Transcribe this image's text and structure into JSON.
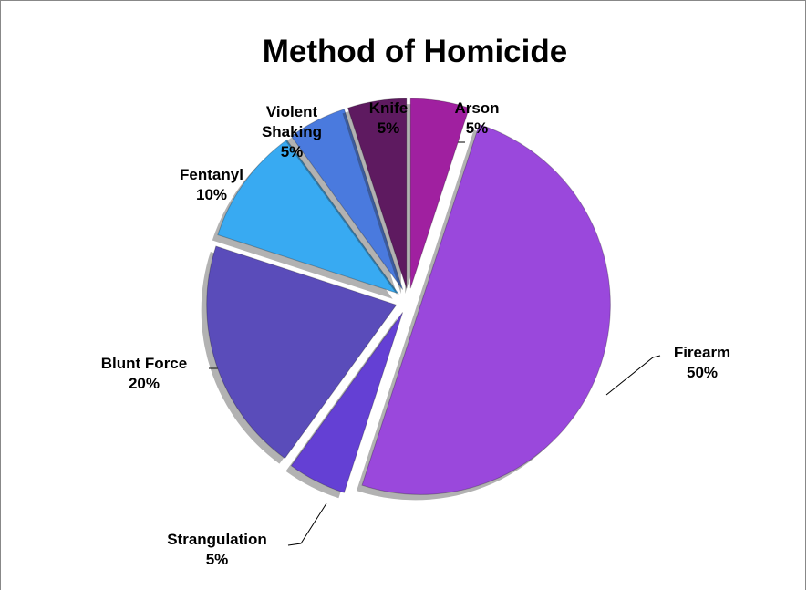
{
  "chart_data": {
    "type": "pie",
    "title": "Method of Homicide",
    "categories": [
      "Arson",
      "Firearm",
      "Strangulation",
      "Blunt Force",
      "Fentanyl",
      "Violent Shaking",
      "Knife"
    ],
    "values": [
      5,
      50,
      5,
      20,
      10,
      5,
      5
    ],
    "value_labels": [
      "5%",
      "50%",
      "5%",
      "20%",
      "10%",
      "5%",
      "5%"
    ],
    "colors": [
      "#a020a0",
      "#9a48dc",
      "#6440d4",
      "#5a4cba",
      "#38aaf2",
      "#4a7ade",
      "#5e1a60"
    ]
  }
}
